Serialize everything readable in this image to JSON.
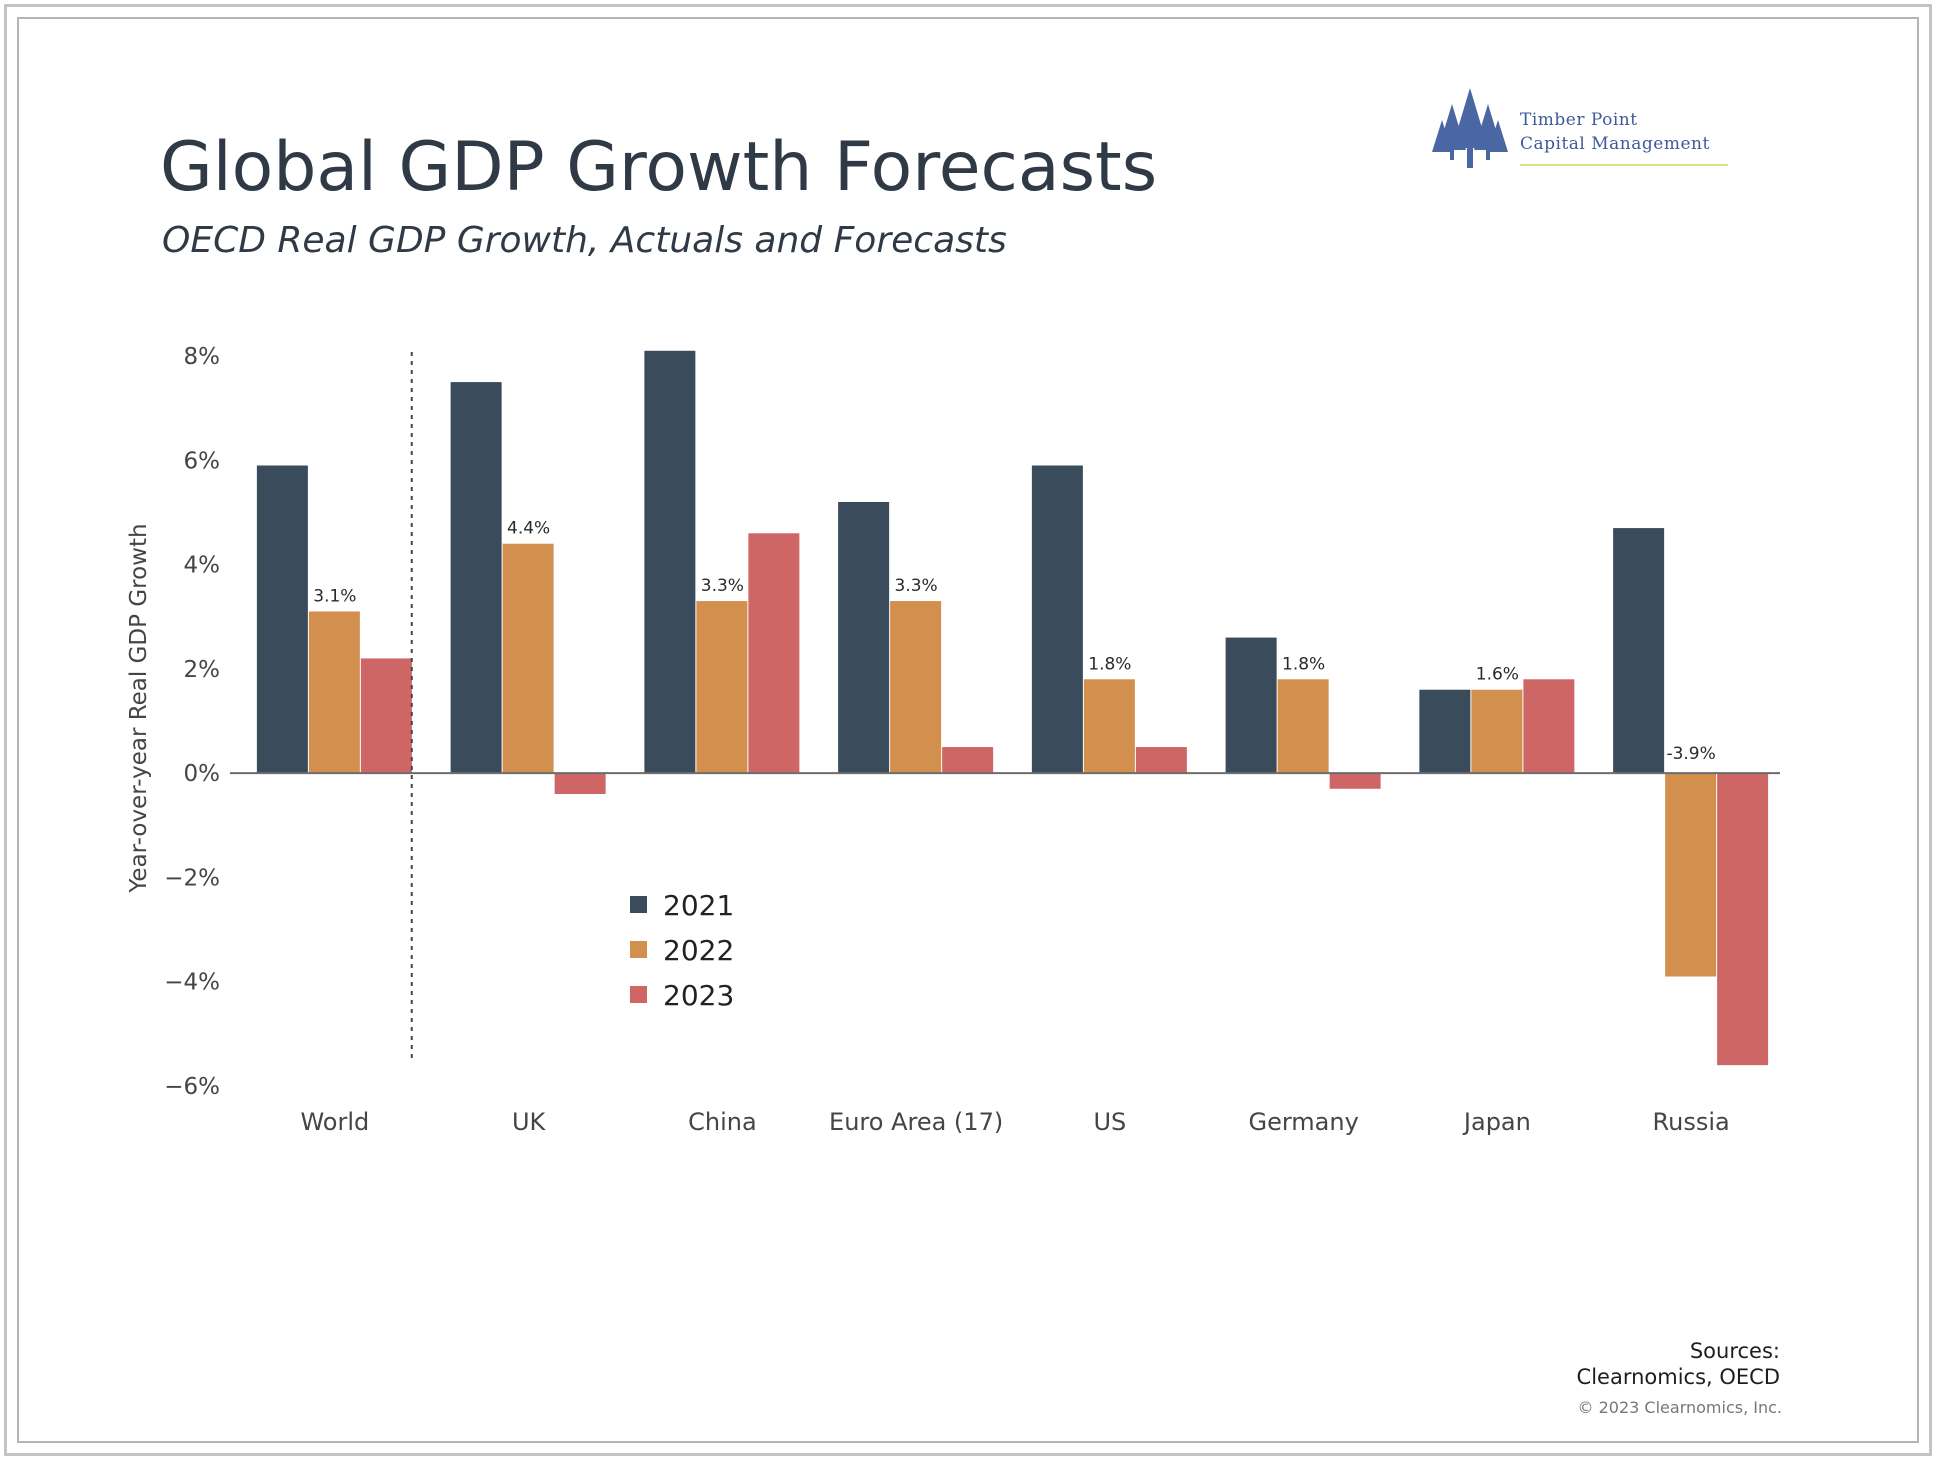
{
  "title": "Global GDP Growth Forecasts",
  "subtitle": "OECD Real GDP Growth, Actuals and Forecasts",
  "logo": {
    "line1": "Timber Point",
    "line2": "Capital Management"
  },
  "sources": "Sources: Clearnomics, OECD",
  "copyright": "© 2023 Clearnomics, Inc.",
  "chart_data": {
    "type": "bar",
    "title": "Global GDP Growth Forecasts",
    "subtitle": "OECD Real GDP Growth, Actuals and Forecasts",
    "ylabel": "Year-over-year Real GDP Growth",
    "xlabel": "",
    "ylim": [
      -6,
      8
    ],
    "yticks": [
      8,
      6,
      4,
      2,
      0,
      -2,
      -4,
      -6
    ],
    "ytick_labels": [
      "8%",
      "6%",
      "4%",
      "2%",
      "0%",
      "−2%",
      "−4%",
      "−6%"
    ],
    "categories": [
      "World",
      "UK",
      "China",
      "Euro Area (17)",
      "US",
      "Germany",
      "Japan",
      "Russia"
    ],
    "series": [
      {
        "name": "2021",
        "color": "#3a4b5b",
        "values": [
          5.9,
          7.5,
          8.1,
          5.2,
          5.9,
          2.6,
          1.6,
          4.7
        ]
      },
      {
        "name": "2022",
        "color": "#d38f4e",
        "values": [
          3.1,
          4.4,
          3.3,
          3.3,
          1.8,
          1.8,
          1.6,
          -3.9
        ]
      },
      {
        "name": "2023",
        "color": "#cf6666",
        "values": [
          2.2,
          -0.4,
          4.6,
          0.5,
          0.5,
          -0.3,
          1.8,
          -5.6
        ]
      }
    ],
    "data_labels": [
      {
        "category": "World",
        "series": "2022",
        "text": "3.1%"
      },
      {
        "category": "UK",
        "series": "2022",
        "text": "4.4%"
      },
      {
        "category": "China",
        "series": "2022",
        "text": "3.3%"
      },
      {
        "category": "Euro Area (17)",
        "series": "2022",
        "text": "3.3%"
      },
      {
        "category": "US",
        "series": "2022",
        "text": "1.8%"
      },
      {
        "category": "Germany",
        "series": "2022",
        "text": "1.8%"
      },
      {
        "category": "Japan",
        "series": "2022",
        "text": "1.6%"
      },
      {
        "category": "Russia",
        "series": "2022",
        "text": "-3.9%"
      }
    ],
    "legend": [
      "2021",
      "2022",
      "2023"
    ],
    "legend_position": "bottom-left inside plot",
    "grid": false,
    "divider_after_category": "World"
  }
}
